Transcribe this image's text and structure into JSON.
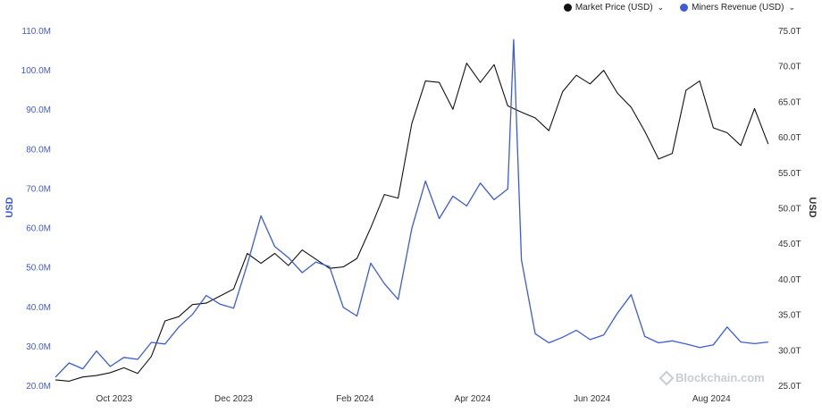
{
  "legend": {
    "items": [
      {
        "label": "Market Price (USD)",
        "color": "#111111",
        "caret": "⌄"
      },
      {
        "label": "Miners Revenue (USD)",
        "color": "#3d5bd9",
        "caret": "⌄"
      }
    ]
  },
  "watermark": {
    "text": "Blockchain.com"
  },
  "chart_data": {
    "type": "line",
    "left_axis": {
      "title": "USD",
      "range": [
        20,
        110
      ],
      "ticks": [
        20,
        30,
        40,
        50,
        60,
        70,
        80,
        90,
        100,
        110
      ],
      "tick_labels": [
        "20.0M",
        "30.0M",
        "40.0M",
        "50.0M",
        "60.0M",
        "70.0M",
        "80.0M",
        "90.0M",
        "100.0M",
        "110.0M"
      ],
      "color": "#3d5bd9"
    },
    "right_axis": {
      "title": "USD",
      "range": [
        25,
        75
      ],
      "ticks": [
        25,
        30,
        35,
        40,
        45,
        50,
        55,
        60,
        65,
        70,
        75
      ],
      "tick_labels": [
        "25.0T",
        "30.0T",
        "35.0T",
        "40.0T",
        "45.0T",
        "50.0T",
        "55.0T",
        "60.0T",
        "65.0T",
        "70.0T",
        "75.0T"
      ],
      "color": "#333333"
    },
    "x_axis": {
      "ticks": [
        "2023-10-01",
        "2023-12-01",
        "2024-02-01",
        "2024-04-01",
        "2024-06-01",
        "2024-08-01"
      ],
      "tick_labels": [
        "Oct 2023",
        "Dec 2023",
        "Feb 2024",
        "Apr 2024",
        "Jun 2024",
        "Aug 2024"
      ],
      "range": [
        "2023-09-01",
        "2024-08-31"
      ]
    },
    "series": [
      {
        "name": "Market Price (USD)",
        "axis": "right",
        "color": "#111111",
        "x": [
          "2023-09-01",
          "2023-09-08",
          "2023-09-15",
          "2023-09-22",
          "2023-09-29",
          "2023-10-06",
          "2023-10-13",
          "2023-10-20",
          "2023-10-27",
          "2023-11-03",
          "2023-11-10",
          "2023-11-17",
          "2023-11-24",
          "2023-12-01",
          "2023-12-08",
          "2023-12-15",
          "2023-12-22",
          "2023-12-29",
          "2024-01-05",
          "2024-01-12",
          "2024-01-19",
          "2024-01-26",
          "2024-02-02",
          "2024-02-09",
          "2024-02-16",
          "2024-02-23",
          "2024-03-01",
          "2024-03-08",
          "2024-03-15",
          "2024-03-22",
          "2024-03-29",
          "2024-04-05",
          "2024-04-12",
          "2024-04-19",
          "2024-04-26",
          "2024-05-03",
          "2024-05-10",
          "2024-05-17",
          "2024-05-24",
          "2024-05-31",
          "2024-06-07",
          "2024-06-14",
          "2024-06-21",
          "2024-06-28",
          "2024-07-05",
          "2024-07-12",
          "2024-07-19",
          "2024-07-26",
          "2024-08-02",
          "2024-08-09",
          "2024-08-16",
          "2024-08-23",
          "2024-08-30"
        ],
        "values": [
          25.9,
          25.7,
          26.3,
          26.5,
          26.9,
          27.6,
          26.8,
          29.2,
          34.2,
          34.8,
          36.5,
          36.7,
          37.7,
          38.7,
          43.7,
          42.3,
          43.7,
          42.0,
          44.2,
          42.9,
          41.6,
          41.8,
          43.0,
          47.3,
          52.0,
          51.5,
          62.0,
          68.0,
          67.8,
          64.0,
          70.5,
          67.8,
          70.3,
          64.5,
          63.6,
          62.8,
          61.0,
          66.5,
          68.8,
          67.6,
          69.5,
          66.3,
          64.3,
          60.9,
          57.0,
          57.8,
          66.7,
          68.0,
          61.4,
          60.7,
          58.9,
          64.1,
          59.1
        ]
      },
      {
        "name": "Miners Revenue (USD)",
        "axis": "left",
        "color": "#3d5bd9",
        "x": [
          "2023-09-01",
          "2023-09-08",
          "2023-09-15",
          "2023-09-22",
          "2023-09-29",
          "2023-10-06",
          "2023-10-13",
          "2023-10-20",
          "2023-10-27",
          "2023-11-03",
          "2023-11-10",
          "2023-11-17",
          "2023-11-24",
          "2023-12-01",
          "2023-12-08",
          "2023-12-15",
          "2023-12-22",
          "2023-12-29",
          "2024-01-05",
          "2024-01-12",
          "2024-01-19",
          "2024-01-26",
          "2024-02-02",
          "2024-02-09",
          "2024-02-16",
          "2024-02-23",
          "2024-03-01",
          "2024-03-08",
          "2024-03-15",
          "2024-03-22",
          "2024-03-29",
          "2024-04-05",
          "2024-04-12",
          "2024-04-19",
          "2024-04-22",
          "2024-04-26",
          "2024-05-03",
          "2024-05-10",
          "2024-05-17",
          "2024-05-24",
          "2024-05-31",
          "2024-06-07",
          "2024-06-14",
          "2024-06-21",
          "2024-06-28",
          "2024-07-05",
          "2024-07-12",
          "2024-07-19",
          "2024-07-26",
          "2024-08-02",
          "2024-08-09",
          "2024-08-16",
          "2024-08-23",
          "2024-08-30"
        ],
        "values": [
          22.3,
          25.9,
          24.4,
          28.9,
          25.0,
          27.3,
          26.8,
          31.1,
          30.7,
          35.0,
          38.2,
          43.0,
          40.8,
          39.8,
          50.9,
          63.2,
          55.4,
          52.6,
          48.8,
          51.5,
          50.3,
          40.0,
          37.8,
          51.2,
          46.0,
          42.0,
          60.0,
          72.0,
          62.5,
          68.2,
          65.7,
          71.5,
          67.3,
          70.0,
          107.9,
          52.0,
          33.3,
          31.0,
          32.4,
          34.2,
          31.8,
          33.0,
          38.5,
          43.2,
          32.6,
          31.0,
          31.5,
          30.7,
          29.8,
          30.5,
          35.0,
          31.2,
          30.8,
          31.2
        ]
      }
    ]
  }
}
